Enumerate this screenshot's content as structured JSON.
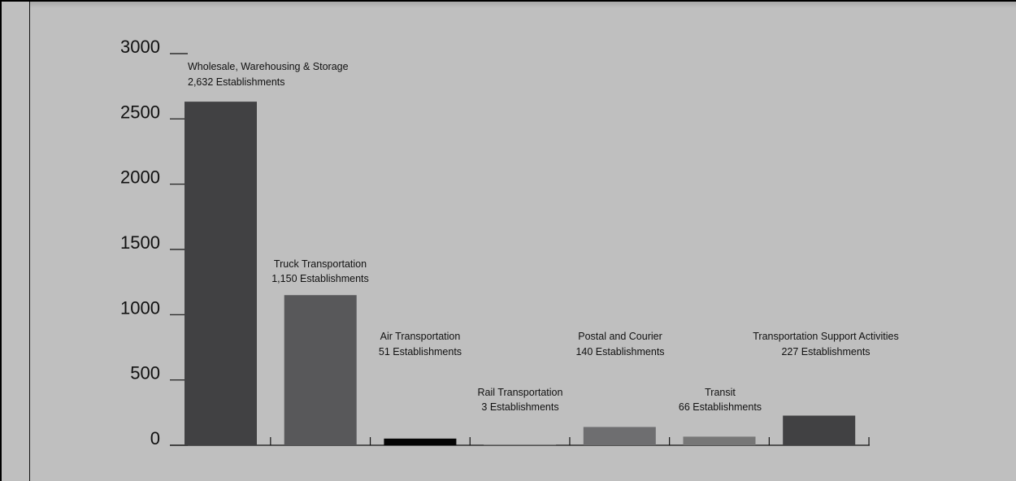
{
  "chart_data": {
    "type": "bar",
    "title": "",
    "xlabel": "",
    "ylabel": "",
    "ylim": [
      0,
      3000
    ],
    "yticks": [
      0,
      500,
      1000,
      1500,
      2000,
      2500,
      3000
    ],
    "grid": false,
    "legend": "none",
    "bars": [
      {
        "category": "Wholesale, Warehousing & Storage",
        "value": 2632,
        "label": "2,632 Establishments",
        "color": "#414143"
      },
      {
        "category": "Truck Transportation",
        "value": 1150,
        "label": "1,150 Establishments",
        "color": "#58585a"
      },
      {
        "category": "Air Transportation",
        "value": 51,
        "label": "51 Establishments",
        "color": "#050505"
      },
      {
        "category": "Rail Transportation",
        "value": 3,
        "label": "3 Establishments",
        "color": "#7a7a7a"
      },
      {
        "category": "Postal and Courier",
        "value": 140,
        "label": "140 Establishments",
        "color": "#6e6e70"
      },
      {
        "category": "Transit",
        "value": 66,
        "label": "66 Establishments",
        "color": "#777777"
      },
      {
        "category": "Transportation Support Activities",
        "value": 227,
        "label": "227 Establishments",
        "color": "#414143"
      }
    ]
  }
}
